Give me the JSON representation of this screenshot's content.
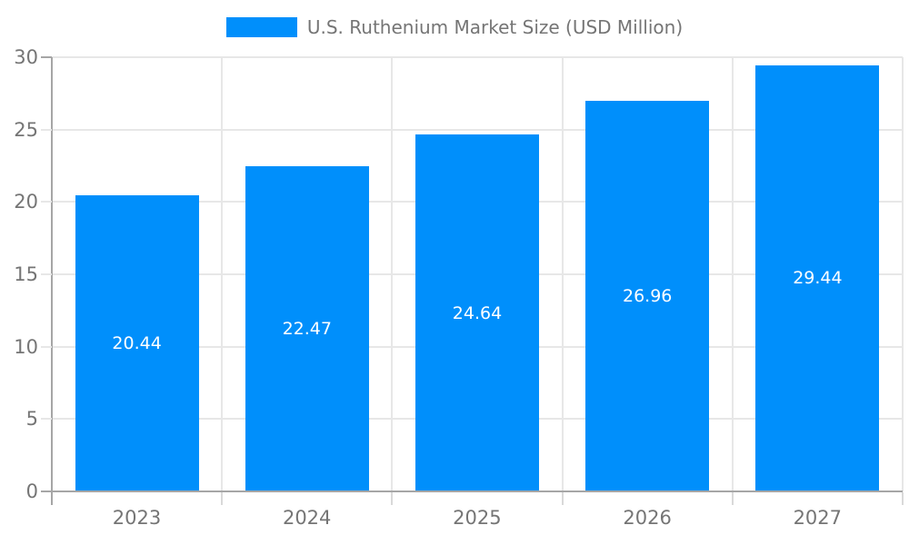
{
  "chart_data": {
    "type": "bar",
    "title": "U.S. Ruthenium Market Size (USD Million)",
    "categories": [
      "2023",
      "2024",
      "2025",
      "2026",
      "2027"
    ],
    "values": [
      20.44,
      22.47,
      24.64,
      26.96,
      29.44
    ],
    "value_labels": [
      "20.44",
      "22.47",
      "24.64",
      "26.96",
      "29.44"
    ],
    "ytick_labels": [
      "0",
      "5",
      "10",
      "15",
      "20",
      "25",
      "30"
    ],
    "yticks": [
      0,
      5,
      10,
      15,
      20,
      25,
      30
    ],
    "ylim": [
      0,
      30
    ],
    "xlabel": "",
    "ylabel": "",
    "grid": true,
    "legend_position": "top-center",
    "bar_color": "#008FFB",
    "value_label_color": "#ffffff",
    "axis_color": "#a6a6a6",
    "grid_color": "#e7e7e7",
    "text_color": "#757575"
  }
}
